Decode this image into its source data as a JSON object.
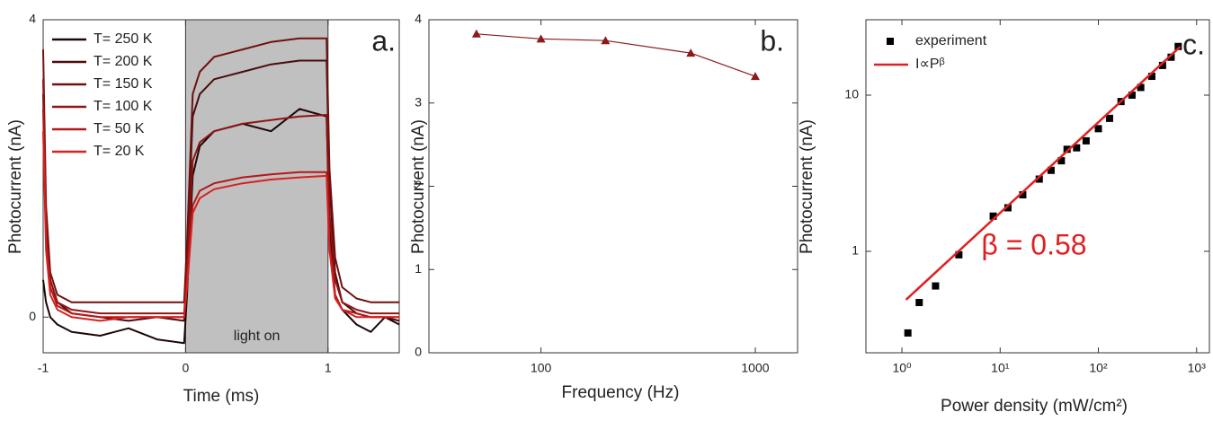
{
  "chart_data": [
    {
      "type": "line",
      "panel_label": "a.",
      "xlabel": "Time (ms)",
      "ylabel": "Photocurrent (nA)",
      "xlim": [
        -1,
        1.5
      ],
      "ylim": [
        -0.48,
        4
      ],
      "xticks": [
        -1,
        0,
        1
      ],
      "yticks": [
        0,
        4
      ],
      "legend": "upper left",
      "shade": {
        "x": [
          0,
          1
        ],
        "label": "light on",
        "color": "#c0c0c0"
      },
      "x": [
        -1,
        -0.98,
        -0.95,
        -0.9,
        -0.8,
        -0.6,
        -0.4,
        -0.2,
        -0.01,
        0.01,
        0.05,
        0.1,
        0.2,
        0.4,
        0.6,
        0.8,
        0.99,
        1.01,
        1.05,
        1.1,
        1.2,
        1.3,
        1.4,
        1.5
      ],
      "series": [
        {
          "name": "T= 250 K",
          "color": "#1e0606",
          "values": [
            0.5,
            0.2,
            0.0,
            -0.1,
            -0.2,
            -0.25,
            -0.15,
            -0.3,
            -0.35,
            0.3,
            1.9,
            2.3,
            2.5,
            2.6,
            2.5,
            2.8,
            2.7,
            1.2,
            0.3,
            0.1,
            -0.1,
            -0.2,
            0.0,
            -0.1
          ]
        },
        {
          "name": "T= 200 K",
          "color": "#4a0c0c",
          "values": [
            3.0,
            1.2,
            0.5,
            0.2,
            0.05,
            0.0,
            -0.05,
            0.0,
            -0.05,
            0.8,
            2.7,
            3.0,
            3.2,
            3.3,
            3.4,
            3.45,
            3.45,
            1.8,
            0.6,
            0.2,
            0.05,
            0.0,
            0.0,
            -0.05
          ]
        },
        {
          "name": "T= 150 K",
          "color": "#701010",
          "values": [
            3.6,
            1.5,
            0.6,
            0.3,
            0.2,
            0.2,
            0.2,
            0.2,
            0.2,
            1.0,
            3.0,
            3.3,
            3.5,
            3.6,
            3.7,
            3.75,
            3.75,
            2.0,
            0.8,
            0.4,
            0.25,
            0.2,
            0.2,
            0.2
          ]
        },
        {
          "name": "T= 100 K",
          "color": "#901414",
          "values": [
            3.2,
            1.3,
            0.5,
            0.2,
            0.1,
            0.05,
            0.05,
            0.05,
            0.05,
            0.6,
            2.1,
            2.35,
            2.5,
            2.6,
            2.65,
            2.7,
            2.72,
            1.4,
            0.5,
            0.2,
            0.1,
            0.05,
            0.05,
            0.05
          ]
        },
        {
          "name": "T= 50 K",
          "color": "#b41818",
          "values": [
            2.8,
            1.0,
            0.4,
            0.15,
            0.05,
            0.0,
            0.0,
            0.0,
            0.0,
            0.5,
            1.5,
            1.7,
            1.8,
            1.88,
            1.92,
            1.95,
            1.95,
            1.0,
            0.3,
            0.1,
            0.05,
            0.0,
            0.0,
            0.0
          ]
        },
        {
          "name": "T= 20 K",
          "color": "#d82020",
          "values": [
            2.5,
            0.9,
            0.3,
            0.1,
            0.0,
            -0.05,
            0.0,
            0.0,
            0.0,
            0.4,
            1.4,
            1.6,
            1.72,
            1.8,
            1.85,
            1.88,
            1.9,
            0.9,
            0.25,
            0.1,
            0.0,
            0.0,
            0.0,
            0.0
          ]
        }
      ]
    },
    {
      "type": "line",
      "panel_label": "b.",
      "xlabel": "Frequency (Hz)",
      "ylabel": "Photocurrent (nA)",
      "xscale": "log",
      "xlim": [
        30,
        1575
      ],
      "ylim": [
        0,
        4
      ],
      "xticks": [
        100,
        1000
      ],
      "yticks": [
        0,
        1,
        2,
        3,
        4
      ],
      "x": [
        50,
        100,
        200,
        500,
        1000
      ],
      "series": [
        {
          "color": "#8b1a1a",
          "marker": "triangle",
          "values": [
            3.83,
            3.77,
            3.75,
            3.6,
            3.32
          ]
        }
      ]
    },
    {
      "type": "scatter",
      "panel_label": "c.",
      "xlabel": "Power density (mW/cm²)",
      "ylabel": "Photocurrent (nA)",
      "xscale": "log",
      "yscale": "log",
      "xlim": [
        0.43,
        1350
      ],
      "ylim": [
        0.224,
        30.4
      ],
      "xticks": [
        {
          "value": 1,
          "label": "10⁰"
        },
        {
          "value": 10,
          "label": "10¹"
        },
        {
          "value": 100,
          "label": "10²"
        },
        {
          "value": 1000,
          "label": "10³"
        }
      ],
      "yticks": [
        1,
        10
      ],
      "legend": "upper left",
      "annotation": "β = 0.58",
      "series": [
        {
          "name": "experiment",
          "color": "#000000",
          "marker": "square",
          "x": [
            1.15,
            1.5,
            2.2,
            3.8,
            8.5,
            12,
            17,
            25,
            33,
            42,
            48,
            60,
            75,
            100,
            130,
            170,
            220,
            270,
            350,
            450,
            550,
            650
          ],
          "values": [
            0.3,
            0.47,
            0.6,
            0.95,
            1.68,
            1.9,
            2.3,
            2.9,
            3.3,
            3.8,
            4.5,
            4.6,
            5.1,
            6.1,
            7.1,
            9.1,
            10,
            11.2,
            13.2,
            15.5,
            17.5,
            20.5
          ]
        },
        {
          "name": "I∝Pᵝ",
          "color": "#e02020",
          "x": [
            1.1,
            680
          ],
          "values": [
            0.49,
            20.4
          ]
        }
      ]
    }
  ]
}
